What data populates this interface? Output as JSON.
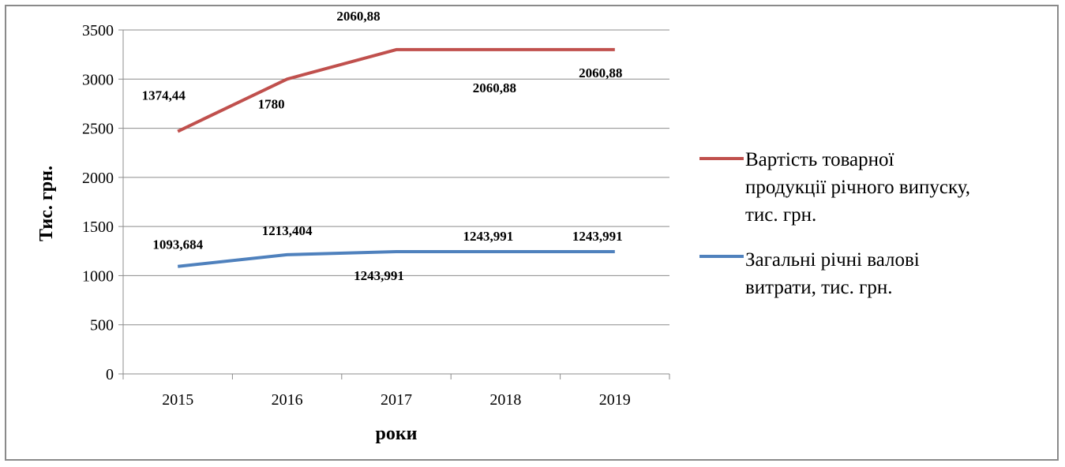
{
  "chart_data": {
    "type": "line",
    "categories": [
      "2015",
      "2016",
      "2017",
      "2018",
      "2019"
    ],
    "ylim": [
      0,
      3500
    ],
    "yticks": [
      0,
      500,
      1000,
      1500,
      2000,
      2500,
      3000,
      3500
    ],
    "ytick_labels": [
      "0",
      "500",
      "1000",
      "1500",
      "2000",
      "2500",
      "3000",
      "3500"
    ],
    "xlabel": "роки",
    "ylabel": "Тис. грн.",
    "grid": true,
    "legend_position": "right",
    "series": [
      {
        "name_lines": [
          "Вартість товарної",
          "продукції річного випуску,",
          "тис. грн."
        ],
        "color": "#c0504d",
        "values": [
          2468,
          3000,
          3300,
          3300,
          3300
        ],
        "data_labels": [
          "1374,44",
          "1780",
          "2060,88",
          "2060,88",
          "2060,88"
        ]
      },
      {
        "name_lines": [
          "Загальні річні валові",
          "витрати, тис. грн."
        ],
        "color": "#4f81bd",
        "values": [
          1094,
          1213,
          1244,
          1244,
          1244
        ],
        "data_labels": [
          "1093,684",
          "1213,404",
          "1243,991",
          "1243,991",
          "1243,991"
        ]
      }
    ]
  }
}
